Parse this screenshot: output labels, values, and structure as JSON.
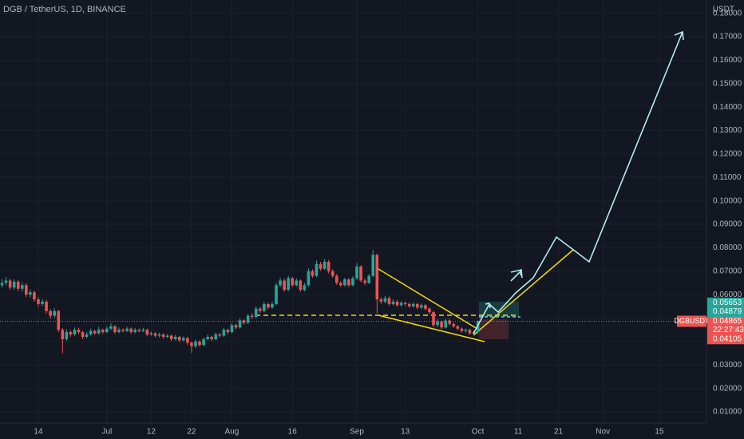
{
  "chart_data": {
    "type": "candlestick",
    "title": "DGB / TetherUS, 1D, BINANCE",
    "y_unit_label": "USDT",
    "symbol": "DGBUSDT",
    "countdown": "22:27:43",
    "last_price": 0.04865,
    "up_color": "#26a69a",
    "down_color": "#ef5350",
    "grid": true,
    "xlim": [
      3.5,
      178.7
    ],
    "ylim": [
      0.00523,
      0.18566
    ],
    "xticks": [
      {
        "value": 13,
        "label": "14"
      },
      {
        "value": 30,
        "label": "Jul"
      },
      {
        "value": 41,
        "label": "12"
      },
      {
        "value": 51,
        "label": "22"
      },
      {
        "value": 61,
        "label": "Aug"
      },
      {
        "value": 76,
        "label": "16"
      },
      {
        "value": 92,
        "label": "Sep"
      },
      {
        "value": 104,
        "label": "13"
      },
      {
        "value": 122,
        "label": "Oct"
      },
      {
        "value": 132,
        "label": "11"
      },
      {
        "value": 142,
        "label": "21"
      },
      {
        "value": 153,
        "label": "Nov"
      },
      {
        "value": 167,
        "label": "15"
      }
    ],
    "yticks": [
      {
        "value": 0.01,
        "label": "0.01000"
      },
      {
        "value": 0.02,
        "label": "0.02000"
      },
      {
        "value": 0.03,
        "label": "0.03000"
      },
      {
        "value": 0.04,
        "label": "0.04000"
      },
      {
        "value": 0.05,
        "label": "0.05000"
      },
      {
        "value": 0.06,
        "label": "0.06000"
      },
      {
        "value": 0.07,
        "label": "0.07000"
      },
      {
        "value": 0.08,
        "label": "0.08000"
      },
      {
        "value": 0.09,
        "label": "0.09000"
      },
      {
        "value": 0.1,
        "label": "0.10000"
      },
      {
        "value": 0.11,
        "label": "0.11000"
      },
      {
        "value": 0.12,
        "label": "0.12000"
      },
      {
        "value": 0.13,
        "label": "0.13000"
      },
      {
        "value": 0.14,
        "label": "0.14000"
      },
      {
        "value": 0.15,
        "label": "0.15000"
      },
      {
        "value": 0.16,
        "label": "0.16000"
      },
      {
        "value": 0.17,
        "label": "0.17000"
      },
      {
        "value": 0.18,
        "label": "0.18000"
      }
    ],
    "price_markers": [
      {
        "value": 0.05653,
        "color": "#26a69a"
      },
      {
        "value": 0.04879,
        "color": "#26a69a"
      },
      {
        "value": 0.04105,
        "color": "#ef5350"
      }
    ],
    "x": [
      4,
      5,
      6,
      7,
      8,
      9,
      10,
      11,
      12,
      13,
      14,
      15,
      16,
      17,
      18,
      19,
      20,
      21,
      22,
      23,
      24,
      25,
      26,
      27,
      28,
      29,
      30,
      31,
      32,
      33,
      34,
      35,
      36,
      37,
      38,
      39,
      40,
      41,
      42,
      43,
      44,
      45,
      46,
      47,
      48,
      49,
      50,
      51,
      52,
      53,
      54,
      55,
      56,
      57,
      58,
      59,
      60,
      61,
      62,
      63,
      64,
      65,
      66,
      67,
      68,
      69,
      70,
      71,
      72,
      73,
      74,
      75,
      76,
      77,
      78,
      79,
      80,
      81,
      82,
      83,
      84,
      85,
      86,
      87,
      88,
      89,
      90,
      91,
      92,
      93,
      94,
      95,
      96,
      97,
      98,
      99,
      100,
      101,
      102,
      103,
      104,
      105,
      106,
      107,
      108,
      109,
      110,
      111,
      112,
      113,
      114,
      115,
      116,
      117,
      118,
      119,
      120,
      121,
      122
    ],
    "open": [
      0.064,
      0.065,
      0.066,
      0.063,
      0.0655,
      0.0625,
      0.064,
      0.06,
      0.061,
      0.058,
      0.056,
      0.057,
      0.053,
      0.051,
      0.053,
      0.045,
      0.041,
      0.044,
      0.043,
      0.045,
      0.044,
      0.042,
      0.043,
      0.0445,
      0.0435,
      0.045,
      0.044,
      0.0455,
      0.0465,
      0.044,
      0.045,
      0.0445,
      0.0455,
      0.044,
      0.045,
      0.0445,
      0.045,
      0.043,
      0.0435,
      0.0425,
      0.043,
      0.042,
      0.0425,
      0.041,
      0.042,
      0.0405,
      0.0415,
      0.0395,
      0.038,
      0.04,
      0.0385,
      0.041,
      0.042,
      0.041,
      0.043,
      0.0425,
      0.045,
      0.044,
      0.047,
      0.046,
      0.049,
      0.048,
      0.051,
      0.0505,
      0.054,
      0.053,
      0.056,
      0.0545,
      0.056,
      0.064,
      0.066,
      0.062,
      0.067,
      0.064,
      0.066,
      0.062,
      0.064,
      0.07,
      0.068,
      0.073,
      0.071,
      0.074,
      0.07,
      0.068,
      0.065,
      0.064,
      0.0665,
      0.064,
      0.067,
      0.072,
      0.066,
      0.065,
      0.068,
      0.077,
      0.058,
      0.057,
      0.0585,
      0.056,
      0.057,
      0.0555,
      0.0565,
      0.056,
      0.055,
      0.056,
      0.0545,
      0.0555,
      0.054,
      0.0525,
      0.047,
      0.0485,
      0.046,
      0.049,
      0.0475,
      0.0465,
      0.0455,
      0.0445,
      0.045,
      0.0435,
      0.044
    ],
    "high": [
      0.0665,
      0.0675,
      0.0668,
      0.0665,
      0.0662,
      0.0652,
      0.0648,
      0.0622,
      0.0618,
      0.059,
      0.0582,
      0.0578,
      0.0538,
      0.0542,
      0.0535,
      0.0458,
      0.0452,
      0.0448,
      0.046,
      0.0458,
      0.0445,
      0.044,
      0.0455,
      0.045,
      0.0462,
      0.0455,
      0.0465,
      0.0478,
      0.047,
      0.046,
      0.0456,
      0.0463,
      0.046,
      0.0458,
      0.0455,
      0.0458,
      0.0455,
      0.0443,
      0.044,
      0.0438,
      0.0435,
      0.0432,
      0.043,
      0.0428,
      0.0425,
      0.0422,
      0.042,
      0.04,
      0.0408,
      0.0405,
      0.0418,
      0.043,
      0.0425,
      0.0438,
      0.0436,
      0.0458,
      0.0455,
      0.0478,
      0.0476,
      0.0498,
      0.0495,
      0.0518,
      0.052,
      0.055,
      0.0548,
      0.057,
      0.0565,
      0.057,
      0.065,
      0.0672,
      0.0668,
      0.068,
      0.0676,
      0.067,
      0.0665,
      0.065,
      0.0712,
      0.0708,
      0.0745,
      0.074,
      0.0752,
      0.0748,
      0.0708,
      0.0688,
      0.0658,
      0.0672,
      0.067,
      0.0678,
      0.0735,
      0.0725,
      0.0668,
      0.0688,
      0.079,
      0.0775,
      0.059,
      0.0595,
      0.0592,
      0.058,
      0.0578,
      0.0572,
      0.057,
      0.0566,
      0.0568,
      0.0565,
      0.0562,
      0.056,
      0.0546,
      0.053,
      0.0495,
      0.049,
      0.0498,
      0.0495,
      0.048,
      0.047,
      0.046,
      0.0456,
      0.0455,
      0.0446,
      0.049
    ],
    "low": [
      0.063,
      0.064,
      0.062,
      0.0622,
      0.0615,
      0.0612,
      0.059,
      0.0588,
      0.057,
      0.0548,
      0.0552,
      0.052,
      0.0498,
      0.0502,
      0.044,
      0.035,
      0.0402,
      0.042,
      0.0425,
      0.0432,
      0.041,
      0.0415,
      0.0425,
      0.0428,
      0.043,
      0.0432,
      0.0435,
      0.0448,
      0.0432,
      0.0435,
      0.0438,
      0.044,
      0.0433,
      0.0435,
      0.0438,
      0.044,
      0.0422,
      0.0425,
      0.0418,
      0.0418,
      0.0412,
      0.0414,
      0.0402,
      0.0404,
      0.0398,
      0.04,
      0.0385,
      0.0352,
      0.0372,
      0.0378,
      0.038,
      0.0404,
      0.0402,
      0.0405,
      0.0418,
      0.042,
      0.0432,
      0.0435,
      0.0452,
      0.0455,
      0.0472,
      0.0475,
      0.0496,
      0.05,
      0.0522,
      0.0525,
      0.0538,
      0.054,
      0.0555,
      0.0632,
      0.0612,
      0.0615,
      0.0632,
      0.0634,
      0.0612,
      0.0614,
      0.0635,
      0.0672,
      0.0675,
      0.0702,
      0.0705,
      0.069,
      0.0672,
      0.0642,
      0.0632,
      0.0635,
      0.0632,
      0.0635,
      0.0662,
      0.0652,
      0.064,
      0.0645,
      0.0675,
      0.052,
      0.056,
      0.0562,
      0.0552,
      0.0553,
      0.0548,
      0.0548,
      0.0552,
      0.0543,
      0.0544,
      0.0538,
      0.0538,
      0.0532,
      0.0515,
      0.046,
      0.0462,
      0.0452,
      0.0455,
      0.0468,
      0.0458,
      0.0448,
      0.0438,
      0.0438,
      0.0428,
      0.0425,
      0.0432
    ],
    "close": [
      0.065,
      0.066,
      0.063,
      0.0655,
      0.0625,
      0.064,
      0.06,
      0.061,
      0.058,
      0.056,
      0.057,
      0.053,
      0.051,
      0.053,
      0.045,
      0.041,
      0.044,
      0.043,
      0.045,
      0.044,
      0.042,
      0.043,
      0.0445,
      0.0435,
      0.045,
      0.044,
      0.0455,
      0.0465,
      0.044,
      0.045,
      0.0445,
      0.0455,
      0.044,
      0.045,
      0.0445,
      0.045,
      0.043,
      0.0435,
      0.0425,
      0.043,
      0.042,
      0.0425,
      0.041,
      0.042,
      0.0405,
      0.0415,
      0.0395,
      0.038,
      0.04,
      0.0385,
      0.041,
      0.042,
      0.041,
      0.043,
      0.0425,
      0.045,
      0.044,
      0.047,
      0.046,
      0.049,
      0.048,
      0.051,
      0.0505,
      0.054,
      0.053,
      0.056,
      0.0545,
      0.056,
      0.064,
      0.066,
      0.062,
      0.067,
      0.064,
      0.066,
      0.062,
      0.064,
      0.07,
      0.068,
      0.073,
      0.071,
      0.074,
      0.07,
      0.068,
      0.065,
      0.064,
      0.0665,
      0.064,
      0.067,
      0.072,
      0.066,
      0.065,
      0.068,
      0.077,
      0.058,
      0.057,
      0.0585,
      0.056,
      0.057,
      0.0555,
      0.0565,
      0.056,
      0.055,
      0.056,
      0.0545,
      0.0555,
      0.054,
      0.0525,
      0.047,
      0.0485,
      0.046,
      0.049,
      0.0475,
      0.0465,
      0.0455,
      0.0445,
      0.045,
      0.0435,
      0.044,
      0.04865
    ]
  }
}
